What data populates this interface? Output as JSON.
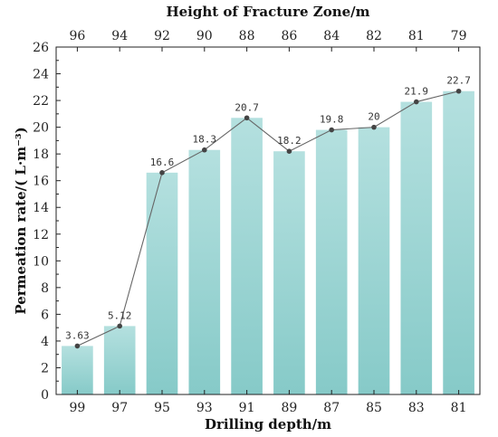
{
  "chart_data": {
    "type": "bar",
    "title": "",
    "xlabel": "Drilling depth/m",
    "x2label": "Height of Fracture Zone/m",
    "ylabel": "Permeation rate/( L·m⁻³)",
    "categories": [
      "99",
      "97",
      "95",
      "93",
      "91",
      "89",
      "87",
      "85",
      "83",
      "81"
    ],
    "top_categories": [
      "96",
      "94",
      "92",
      "90",
      "88",
      "86",
      "84",
      "82",
      "81",
      "79"
    ],
    "values": [
      3.63,
      5.12,
      16.6,
      18.3,
      20.7,
      18.2,
      19.8,
      20,
      21.9,
      22.7
    ],
    "value_labels": [
      "3.63",
      "5.12",
      "16.6",
      "18.3",
      "20.7",
      "18.2",
      "19.8",
      "20",
      "21.9",
      "22.7"
    ],
    "ylim": [
      0,
      26
    ],
    "yticks": [
      0,
      2,
      4,
      6,
      8,
      10,
      12,
      14,
      16,
      18,
      20,
      22,
      24,
      26
    ],
    "overlay_line": true,
    "grid": false,
    "colors": {
      "bar_top": "#b4e0df",
      "bar_bottom": "#86cac8",
      "line": "#666666",
      "marker": "#444444",
      "axis": "#222222"
    }
  }
}
